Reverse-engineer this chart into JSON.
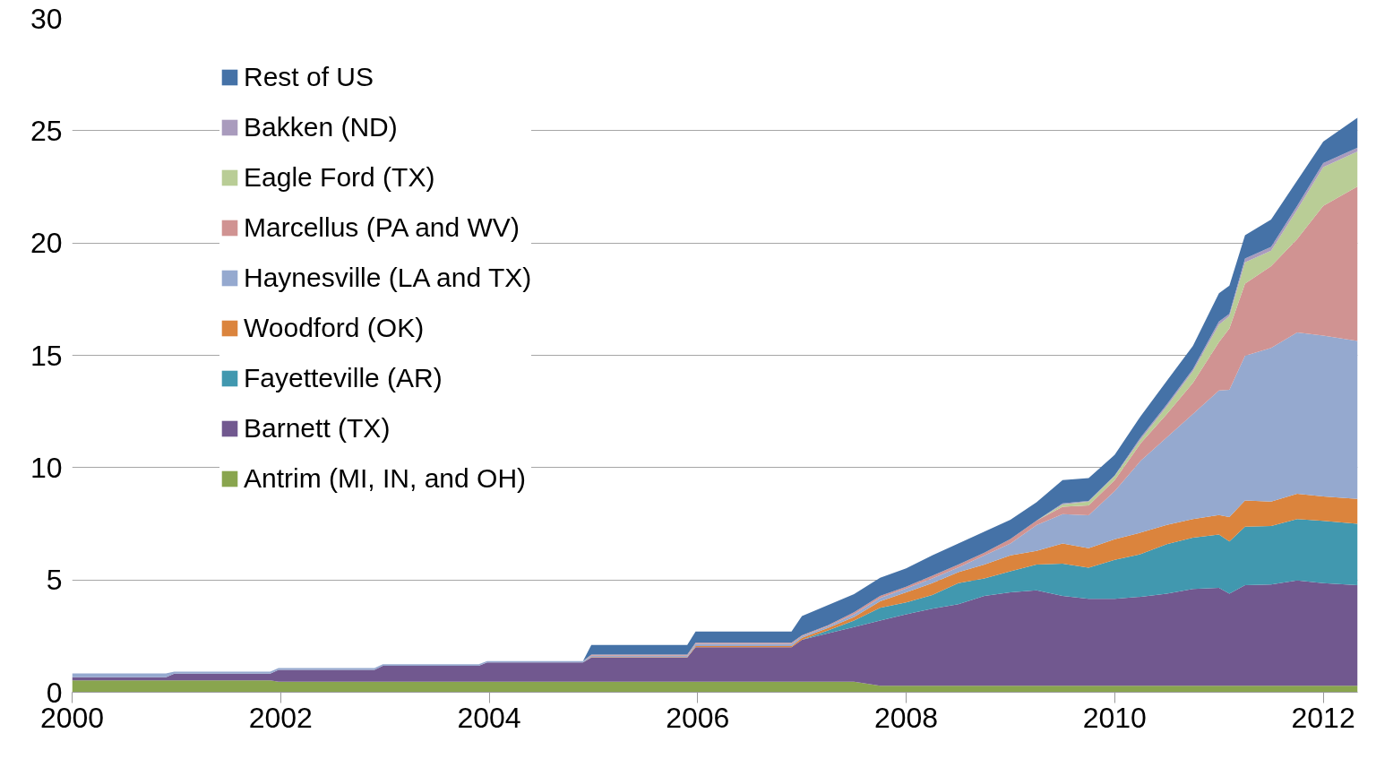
{
  "chart_data": {
    "type": "area",
    "stacked": true,
    "x": [
      2000,
      2000.9,
      2000.98,
      2001.9,
      2001.98,
      2002.9,
      2002.98,
      2003.9,
      2003.98,
      2004.9,
      2004.98,
      2005.9,
      2005.98,
      2006.9,
      2007.0,
      2007.25,
      2007.5,
      2007.75,
      2008.0,
      2008.25,
      2008.5,
      2008.75,
      2009.0,
      2009.25,
      2009.5,
      2009.75,
      2010.0,
      2010.25,
      2010.5,
      2010.75,
      2011.0,
      2011.1,
      2011.25,
      2011.5,
      2011.75,
      2012.0,
      2012.33
    ],
    "series": [
      {
        "name": "Antrim (MI, IN, and OH)",
        "color": "#89a54e",
        "values": [
          0.53,
          0.53,
          0.53,
          0.53,
          0.47,
          0.47,
          0.47,
          0.47,
          0.47,
          0.47,
          0.47,
          0.47,
          0.47,
          0.47,
          0.47,
          0.47,
          0.47,
          0.29,
          0.29,
          0.29,
          0.29,
          0.29,
          0.29,
          0.29,
          0.29,
          0.29,
          0.29,
          0.29,
          0.29,
          0.29,
          0.29,
          0.29,
          0.29,
          0.29,
          0.29,
          0.29,
          0.29
        ]
      },
      {
        "name": "Barnett (TX)",
        "color": "#71588f",
        "values": [
          0.14,
          0.14,
          0.3,
          0.3,
          0.53,
          0.53,
          0.71,
          0.71,
          0.86,
          0.86,
          1.08,
          1.08,
          1.53,
          1.53,
          1.86,
          2.15,
          2.43,
          2.9,
          3.18,
          3.43,
          3.63,
          4.0,
          4.16,
          4.25,
          4.0,
          3.87,
          3.87,
          3.96,
          4.1,
          4.31,
          4.36,
          4.1,
          4.48,
          4.51,
          4.69,
          4.57,
          4.48
        ]
      },
      {
        "name": "Fayetteville (AR)",
        "color": "#4198af",
        "values": [
          0,
          0,
          0,
          0,
          0,
          0,
          0,
          0,
          0,
          0,
          0,
          0,
          0,
          0,
          0,
          0.13,
          0.29,
          0.57,
          0.53,
          0.61,
          0.94,
          0.78,
          0.94,
          1.14,
          1.43,
          1.39,
          1.73,
          1.9,
          2.2,
          2.28,
          2.37,
          2.32,
          2.6,
          2.6,
          2.73,
          2.77,
          2.73
        ]
      },
      {
        "name": "Woodford (OK)",
        "color": "#db843d",
        "values": [
          0,
          0,
          0,
          0,
          0,
          0,
          0,
          0,
          0,
          0,
          0.02,
          0.02,
          0.05,
          0.05,
          0.09,
          0.11,
          0.16,
          0.29,
          0.45,
          0.53,
          0.49,
          0.61,
          0.7,
          0.61,
          0.9,
          0.86,
          0.92,
          0.96,
          0.86,
          0.83,
          0.87,
          1.09,
          1.17,
          1.09,
          1.13,
          1.09,
          1.11
        ]
      },
      {
        "name": "Haynesville (LA and TX)",
        "color": "#95a9cf",
        "values": [
          0.17,
          0.17,
          0.09,
          0.09,
          0.08,
          0.08,
          0.07,
          0.07,
          0.06,
          0.06,
          0.06,
          0.06,
          0.1,
          0.1,
          0.07,
          0.08,
          0.12,
          0.15,
          0.17,
          0.21,
          0.21,
          0.41,
          0.53,
          1.15,
          1.31,
          1.47,
          2.15,
          3.2,
          3.9,
          4.68,
          5.54,
          5.66,
          6.44,
          6.84,
          7.18,
          7.16,
          7.03
        ]
      },
      {
        "name": "Marcellus (PA and WV)",
        "color": "#d09392",
        "values": [
          0,
          0,
          0,
          0,
          0,
          0,
          0,
          0,
          0,
          0,
          0.05,
          0.05,
          0.05,
          0.05,
          0.04,
          0.04,
          0.09,
          0.09,
          0.08,
          0.12,
          0.12,
          0.12,
          0.2,
          0.2,
          0.33,
          0.44,
          0.48,
          0.78,
          1.04,
          1.38,
          2.16,
          2.74,
          3.21,
          3.64,
          4.16,
          5.77,
          6.88
        ]
      },
      {
        "name": "Eagle Ford (TX)",
        "color": "#b9cd96",
        "values": [
          0,
          0,
          0,
          0,
          0,
          0,
          0,
          0,
          0,
          0,
          0,
          0,
          0,
          0,
          0,
          0,
          0,
          0,
          0,
          0,
          0,
          0,
          0,
          0,
          0.1,
          0.17,
          0.18,
          0.17,
          0.34,
          0.52,
          0.78,
          0.55,
          0.95,
          0.69,
          1.3,
          1.73,
          1.56
        ]
      },
      {
        "name": "Bakken (ND)",
        "color": "#a99bbd",
        "values": [
          0,
          0,
          0,
          0,
          0,
          0,
          0,
          0,
          0,
          0,
          0,
          0,
          0,
          0,
          0,
          0,
          0,
          0,
          0,
          0,
          0,
          0,
          0,
          0,
          0.05,
          0.03,
          0.03,
          0.09,
          0.09,
          0.09,
          0.14,
          0.1,
          0.17,
          0.17,
          0.17,
          0.18,
          0.17
        ]
      },
      {
        "name": "Rest of US",
        "color": "#4572a7",
        "values": [
          0,
          0,
          0,
          0,
          0,
          0,
          0,
          0,
          0,
          0,
          0.42,
          0.42,
          0.5,
          0.5,
          0.86,
          0.9,
          0.81,
          0.81,
          0.82,
          0.9,
          0.94,
          0.94,
          0.86,
          0.82,
          1.03,
          1.01,
          0.92,
          0.95,
          1.04,
          1.04,
          1.25,
          1.25,
          1.04,
          1.21,
          1.13,
          0.95,
          1.33
        ]
      }
    ],
    "xlim": [
      2000,
      2012.33
    ],
    "xticks": [
      2000,
      2002,
      2004,
      2006,
      2008,
      2010,
      2012
    ],
    "ylim": [
      0,
      30
    ],
    "yticks": [
      0,
      5,
      10,
      15,
      20,
      25,
      30
    ],
    "grid": "y",
    "legend": "top left"
  }
}
